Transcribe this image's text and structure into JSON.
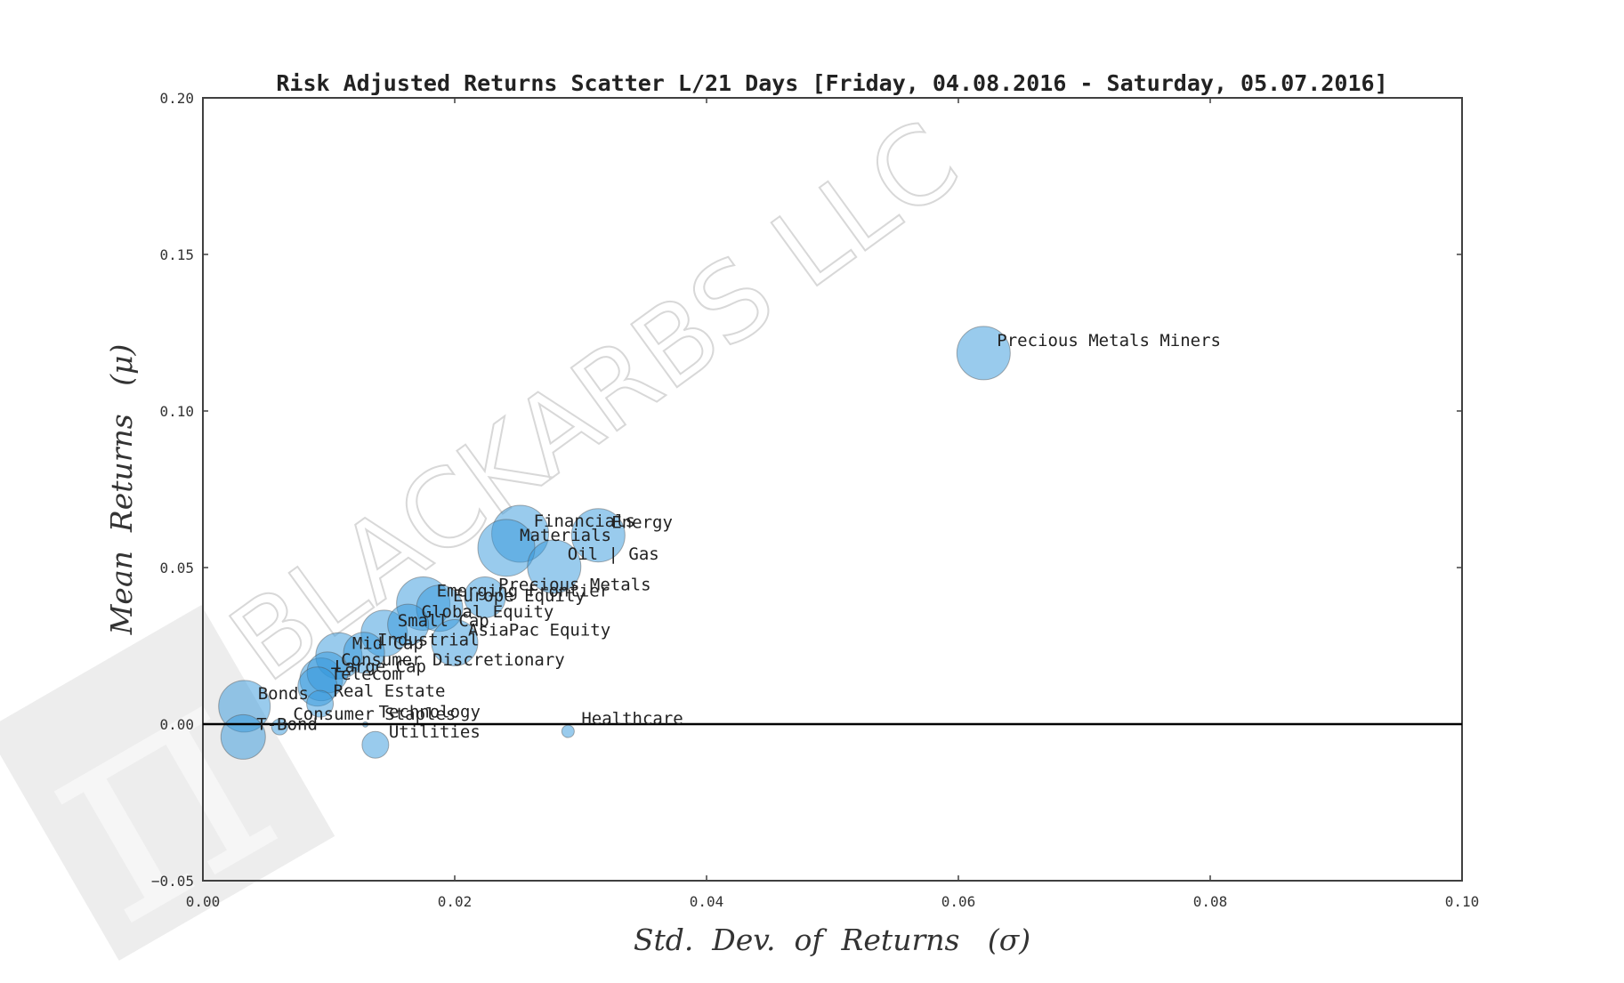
{
  "chart_data": {
    "type": "scatter",
    "title": "Risk Adjusted Returns Scatter L/21 Days [Friday, 04.08.2016 - Saturday, 05.07.2016]",
    "xlabel": "Std.  Dev.  of  Returns   (σ)",
    "ylabel": "Mean  Returns   (μ)",
    "xlim": [
      0.0,
      0.1
    ],
    "ylim": [
      -0.05,
      0.2
    ],
    "x_ticks": [
      "0.00",
      "0.02",
      "0.04",
      "0.06",
      "0.08",
      "0.10"
    ],
    "y_ticks": [
      "−0.05",
      "0.00",
      "0.05",
      "0.10",
      "0.15",
      "0.20"
    ],
    "grid": false,
    "legend": null,
    "reference_line": {
      "y": 0.0,
      "color": "#000000"
    },
    "marker_color": "#3498db",
    "marker_alpha": 0.5,
    "points": [
      {
        "label": "Precious Metals Miners",
        "x": 0.062,
        "y": 0.1185,
        "size": 30
      },
      {
        "label": "Financials",
        "x": 0.0252,
        "y": 0.0608,
        "size": 32
      },
      {
        "label": "Energy",
        "x": 0.0314,
        "y": 0.0603,
        "size": 30
      },
      {
        "label": "Materials",
        "x": 0.0241,
        "y": 0.0563,
        "size": 32
      },
      {
        "label": "Oil | Gas",
        "x": 0.0279,
        "y": 0.0503,
        "size": 30
      },
      {
        "label": "Precious Metals",
        "x": 0.0224,
        "y": 0.0405,
        "size": 23
      },
      {
        "label": "Emerging Frontier",
        "x": 0.0175,
        "y": 0.0385,
        "size": 30
      },
      {
        "label": "Europe Equity",
        "x": 0.0188,
        "y": 0.037,
        "size": 26
      },
      {
        "label": "Global Equity",
        "x": 0.0163,
        "y": 0.0318,
        "size": 23
      },
      {
        "label": "Small Cap",
        "x": 0.0144,
        "y": 0.029,
        "size": 26
      },
      {
        "label": "AsiaPac Equity",
        "x": 0.02,
        "y": 0.026,
        "size": 26
      },
      {
        "label": "Industrial",
        "x": 0.0128,
        "y": 0.0228,
        "size": 23
      },
      {
        "label": "Mid Cap",
        "x": 0.0108,
        "y": 0.0218,
        "size": 26
      },
      {
        "label": "Consumer Discretionary",
        "x": 0.0099,
        "y": 0.0165,
        "size": 23
      },
      {
        "label": "Large Cap",
        "x": 0.0094,
        "y": 0.0143,
        "size": 24
      },
      {
        "label": "Telecom",
        "x": 0.0091,
        "y": 0.012,
        "size": 22
      },
      {
        "label": "Real Estate",
        "x": 0.0093,
        "y": 0.0065,
        "size": 15
      },
      {
        "label": "Bonds",
        "x": 0.0033,
        "y": 0.0057,
        "size": 29
      },
      {
        "label": "Consumer Staples",
        "x": 0.0061,
        "y": -0.0009,
        "size": 9
      },
      {
        "label": "T-Bond",
        "x": 0.0032,
        "y": -0.0041,
        "size": 25
      },
      {
        "label": "Technology",
        "x": 0.0129,
        "y": -0.0001,
        "size": 3
      },
      {
        "label": "Utilities",
        "x": 0.0137,
        "y": -0.0066,
        "size": 15
      },
      {
        "label": "Healthcare",
        "x": 0.029,
        "y": -0.0023,
        "size": 7
      }
    ]
  },
  "watermark": {
    "text": "BLACKARBS LLC",
    "logo_glyph": "π",
    "logo-icon": "pi-logo-icon"
  }
}
